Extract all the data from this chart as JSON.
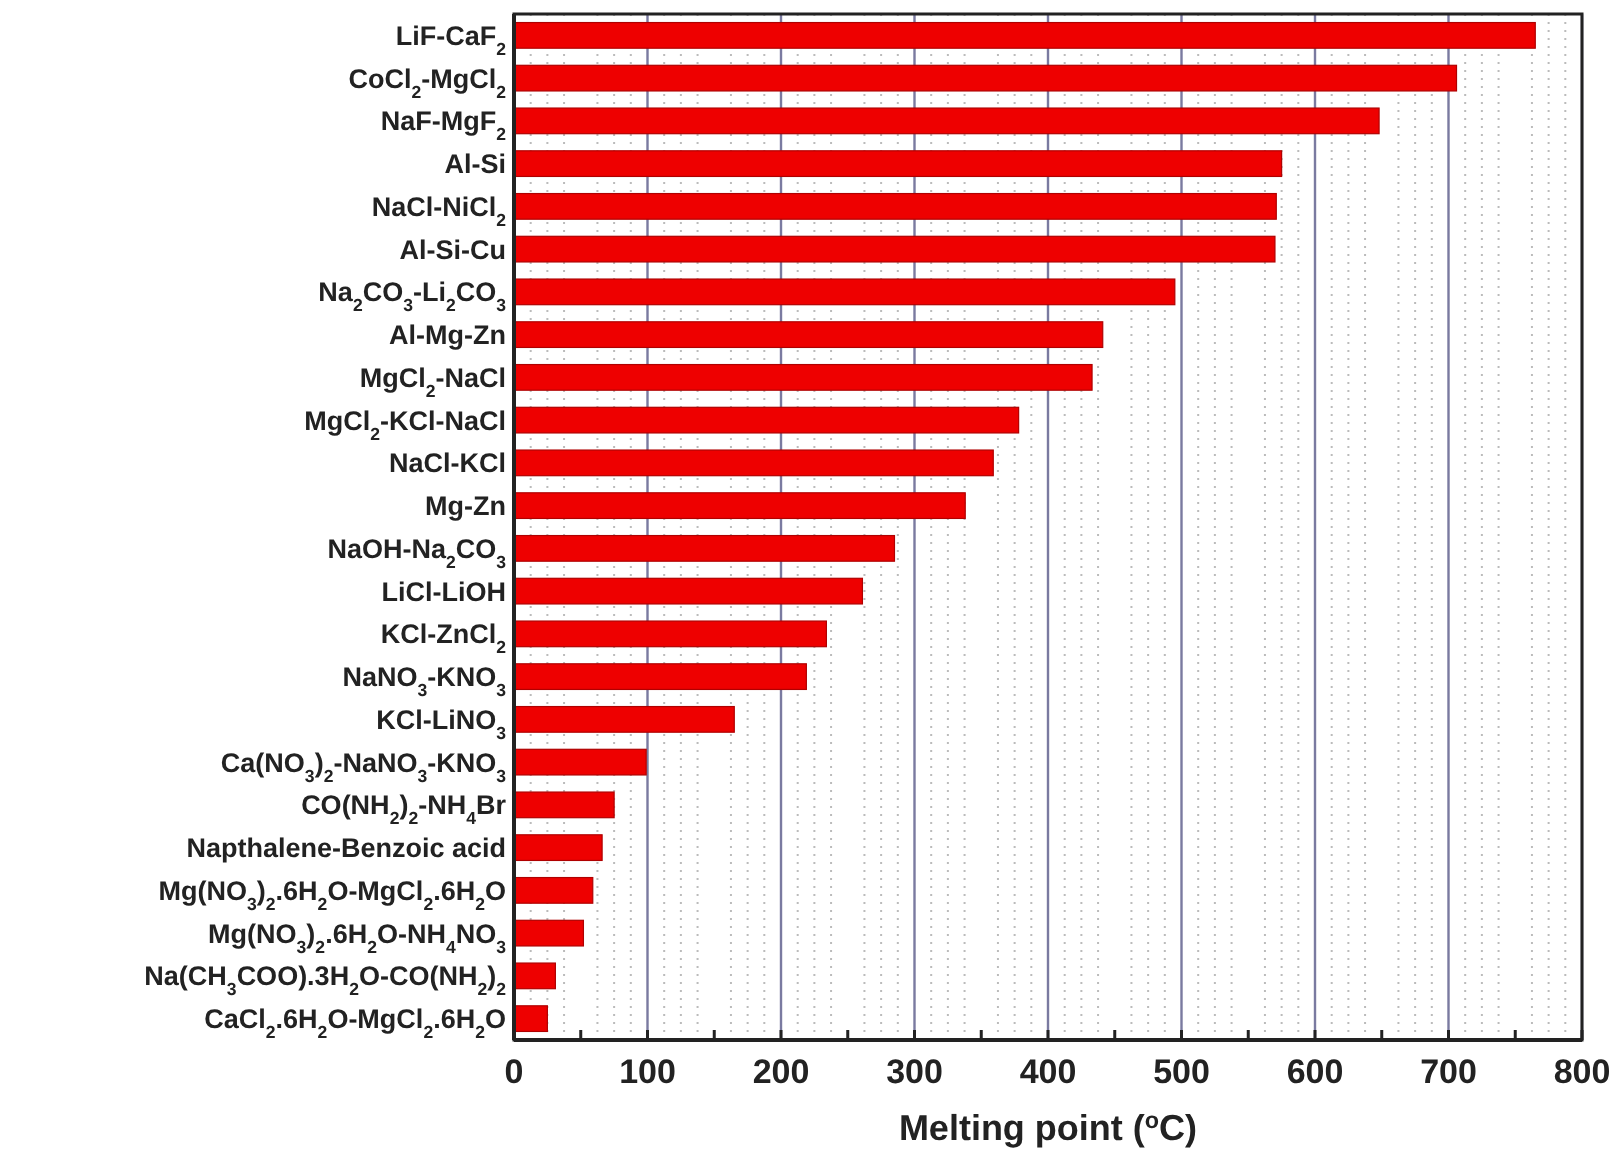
{
  "chart_data": {
    "type": "bar",
    "orientation": "horizontal",
    "xlabel": "Melting point ($^{o}$C)",
    "categories": [
      "LiF-CaF$_{2}$",
      "CoCl$_{2}$-MgCl$_{2}$",
      "NaF-MgF$_{2}$",
      "Al-Si",
      "NaCl-NiCl$_{2}$",
      "Al-Si-Cu",
      "Na$_{2}$CO$_{3}$-Li$_{2}$CO$_{3}$",
      "Al-Mg-Zn",
      "MgCl$_{2}$-NaCl",
      "MgCl$_{2}$-KCl-NaCl",
      "NaCl-KCl",
      "Mg-Zn",
      "NaOH-Na$_{2}$CO$_{3}$",
      "LiCl-LiOH",
      "KCl-ZnCl$_{2}$",
      "NaNO$_{3}$-KNO$_{3}$",
      "KCl-LiNO$_{3}$",
      "Ca(NO$_{3}$)$_{2}$-NaNO$_{3}$-KNO$_{3}$",
      "CO(NH$_{2}$)$_{2}$-NH$_{4}$Br",
      "Napthalene-Benzoic acid",
      "Mg(NO$_{3}$)$_{2}$.6H$_{2}$O-MgCl$_{2}$.6H$_{2}$O",
      "Mg(NO$_{3}$)$_{2}$.6H$_{2}$O-NH$_{4}$NO$_{3}$",
      "Na(CH$_{3}$COO).3H$_{2}$O-CO(NH$_{2}$)$_{2}$",
      "CaCl$_{2}$.6H$_{2}$O-MgCl$_{2}$.6H$_{2}$O"
    ],
    "values": [
      765,
      706,
      648,
      575,
      571,
      570,
      495,
      441,
      433,
      378,
      359,
      338,
      285,
      261,
      234,
      219,
      165,
      99,
      75,
      66,
      59,
      52,
      31,
      25
    ],
    "color": "#ee0000",
    "xlim": [
      0,
      800
    ],
    "xticks": [
      0,
      {
        "value": 50,
        "label": null
      },
      100,
      {
        "value": 150,
        "label": null
      },
      200,
      {
        "value": 250,
        "label": null
      },
      300,
      {
        "value": 350,
        "label": null
      },
      400,
      {
        "value": 450,
        "label": null
      },
      500,
      {
        "value": 550,
        "label": null
      },
      600,
      {
        "value": 650,
        "label": null
      },
      700,
      {
        "value": 750,
        "label": null
      },
      800
    ],
    "grid": "x"
  }
}
